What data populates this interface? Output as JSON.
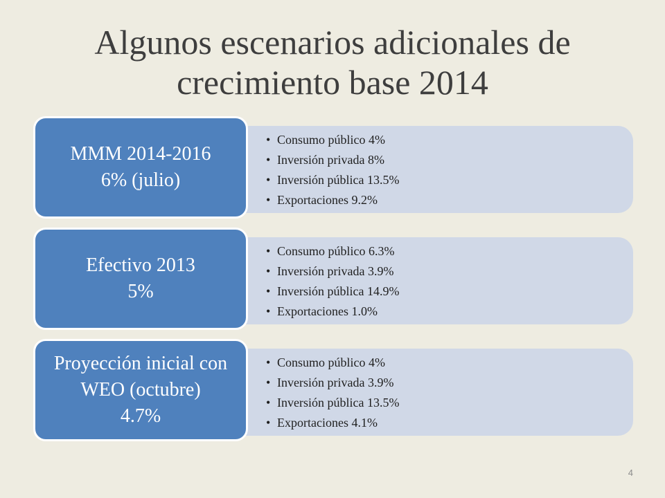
{
  "slide": {
    "title_line_1": "Algunos escenarios adicionales de",
    "title_line_2": "crecimiento base 2014",
    "page_number": "4"
  },
  "scenarios": [
    {
      "label": "MMM 2014-2016",
      "value": "6% (julio)",
      "items": [
        "Consumo público 4%",
        "Inversión privada 8%",
        "Inversión pública 13.5%",
        "Exportaciones 9.2%"
      ]
    },
    {
      "label": "Efectivo 2013",
      "value": "5%",
      "items": [
        "Consumo público 6.3%",
        "Inversión privada 3.9%",
        "Inversión pública 14.9%",
        "Exportaciones 1.0%"
      ]
    },
    {
      "label": "Proyección inicial con WEO (octubre)",
      "value": "4.7%",
      "items": [
        "Consumo público 4%",
        "Inversión privada 3.9%",
        "Inversión pública 13.5%",
        "Exportaciones 4.1%"
      ]
    }
  ],
  "colors": {
    "background": "#eeece1",
    "label_fill": "#4f81bd",
    "detail_fill": "#d0d8e7",
    "text_dark": "#3e3e3e"
  }
}
